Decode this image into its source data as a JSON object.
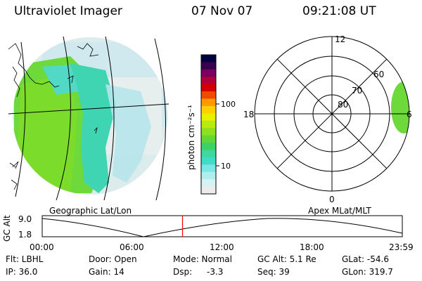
{
  "header": {
    "title": "Ultraviolet Imager",
    "date": "07 Nov 07",
    "time": "09:21:08 UT"
  },
  "colorbar": {
    "unit_label": "photon cm⁻²s⁻¹",
    "ticks": [
      "100",
      "10"
    ],
    "colors": [
      "#000040",
      "#3a0050",
      "#7a0060",
      "#b0003a",
      "#d40000",
      "#f04a00",
      "#ff9a00",
      "#ffd000",
      "#e8f000",
      "#b8ea10",
      "#8ee020",
      "#62d838",
      "#40d068",
      "#3ed8a0",
      "#40dcc8",
      "#7ae6e6",
      "#b0eeee",
      "#d6f2f2",
      "#ececec"
    ]
  },
  "geo_panel": {
    "label": "Geographic Lat/Lon",
    "image_color_main": "#6ed93a"
  },
  "apex_panel": {
    "label": "Apex MLat/MLT",
    "lat_labels": [
      "80",
      "70",
      "60"
    ],
    "mlt_labels": {
      "top": "12",
      "left": "18",
      "right": "6",
      "bottom": "0"
    }
  },
  "gc_alt_plot": {
    "ylabel": "GC Alt",
    "yticks": [
      "9.0",
      "1.8"
    ],
    "xticks": [
      "00:00",
      "06:00",
      "12:00",
      "18:00",
      "23:59"
    ],
    "current_time_hours": 9.352,
    "marker_color": "#ff0000"
  },
  "status": {
    "col1": [
      "Flt: LBHL",
      "IP: 36.0"
    ],
    "col2": [
      "Door: Open",
      "Gain: 14"
    ],
    "col3": [
      "Mode: Normal",
      "Dsp:",
      "-3.3"
    ],
    "col4": [
      "GC Alt: 5.1 Re",
      "Seq: 39"
    ],
    "col5": [
      "GLat: -54.6",
      "GLon: 319.7"
    ]
  }
}
